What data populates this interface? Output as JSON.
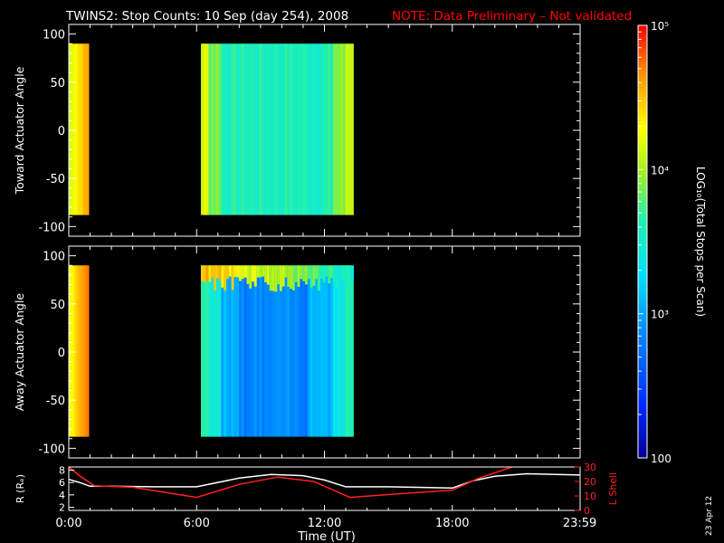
{
  "header": {
    "title": "TWINS2: Stop Counts: 10 Sep (day 254), 2008",
    "note": "NOTE: Data Preliminary – Not validated"
  },
  "stamp": "23 Apr 12",
  "colors": {
    "background": "#000000",
    "note": "#ff0000",
    "axes": "#ffffff",
    "lshell": "#ff2020",
    "radius": "#ffffff"
  },
  "chart_data": [
    {
      "type": "heatmap",
      "panel": "toward",
      "ylabel": "Toward Actuator Angle",
      "ylim": [
        -110,
        110
      ],
      "yticks": [
        -100,
        -50,
        0,
        50,
        100
      ],
      "xlim": [
        0,
        24
      ],
      "angle_range": [
        -88,
        90
      ],
      "intervals": [
        {
          "t_start": 0.0,
          "t_end": 0.93,
          "level": 4.3
        },
        {
          "t_start": 6.2,
          "t_end": 13.35,
          "level": 3.6
        }
      ]
    },
    {
      "type": "heatmap",
      "panel": "away",
      "ylabel": "Away Actuator Angle",
      "ylim": [
        -110,
        110
      ],
      "yticks": [
        -100,
        -50,
        0,
        50,
        100
      ],
      "xlim": [
        0,
        24
      ],
      "angle_range": [
        -88,
        90
      ],
      "intervals": [
        {
          "t_start": 0.0,
          "t_end": 0.93,
          "level": 4.4
        },
        {
          "t_start": 6.2,
          "t_end": 13.35,
          "level": 3.1
        }
      ]
    },
    {
      "type": "line",
      "panel": "orbit",
      "xlabel": "Time (UT)",
      "xlim": [
        0,
        24
      ],
      "xticks": [
        0,
        6,
        12,
        18,
        23.983
      ],
      "xticklabels": [
        "0:00",
        "6:00",
        "12:00",
        "18:00",
        "23:59"
      ],
      "ylabel_left": "R (Rₑ)",
      "ylim_left": [
        1.5,
        8.5
      ],
      "yticks_left": [
        2,
        4,
        6,
        8
      ],
      "ylabel_right": "L Shell",
      "ylim_right": [
        0,
        30
      ],
      "yticks_right": [
        0,
        10,
        20,
        30
      ],
      "series": [
        {
          "axis": "left",
          "x": [
            0,
            0.5,
            1,
            2,
            4,
            6,
            8,
            9.5,
            11,
            12,
            13,
            15,
            18,
            19,
            20,
            21.5,
            23.99
          ],
          "y": [
            6.5,
            6.0,
            5.4,
            5.4,
            5.3,
            5.3,
            6.7,
            7.3,
            7.1,
            6.4,
            5.3,
            5.3,
            5.1,
            6.3,
            7.0,
            7.4,
            7.2
          ]
        },
        {
          "axis": "right",
          "x": [
            0,
            0.5,
            1.2,
            3,
            6,
            8,
            9.8,
            11.5,
            13.2,
            16,
            18,
            19.2,
            20.8
          ],
          "y": [
            30,
            24,
            17,
            16,
            9,
            18,
            23,
            20,
            9,
            12,
            14,
            22,
            30
          ]
        }
      ]
    },
    {
      "type": "colorbar",
      "label": "LOG₁₀(Total Stops per Scan)",
      "scale": "log",
      "range": [
        100,
        100000
      ],
      "ticklabels": [
        "100",
        "10³",
        "10⁴",
        "10⁵"
      ]
    }
  ]
}
